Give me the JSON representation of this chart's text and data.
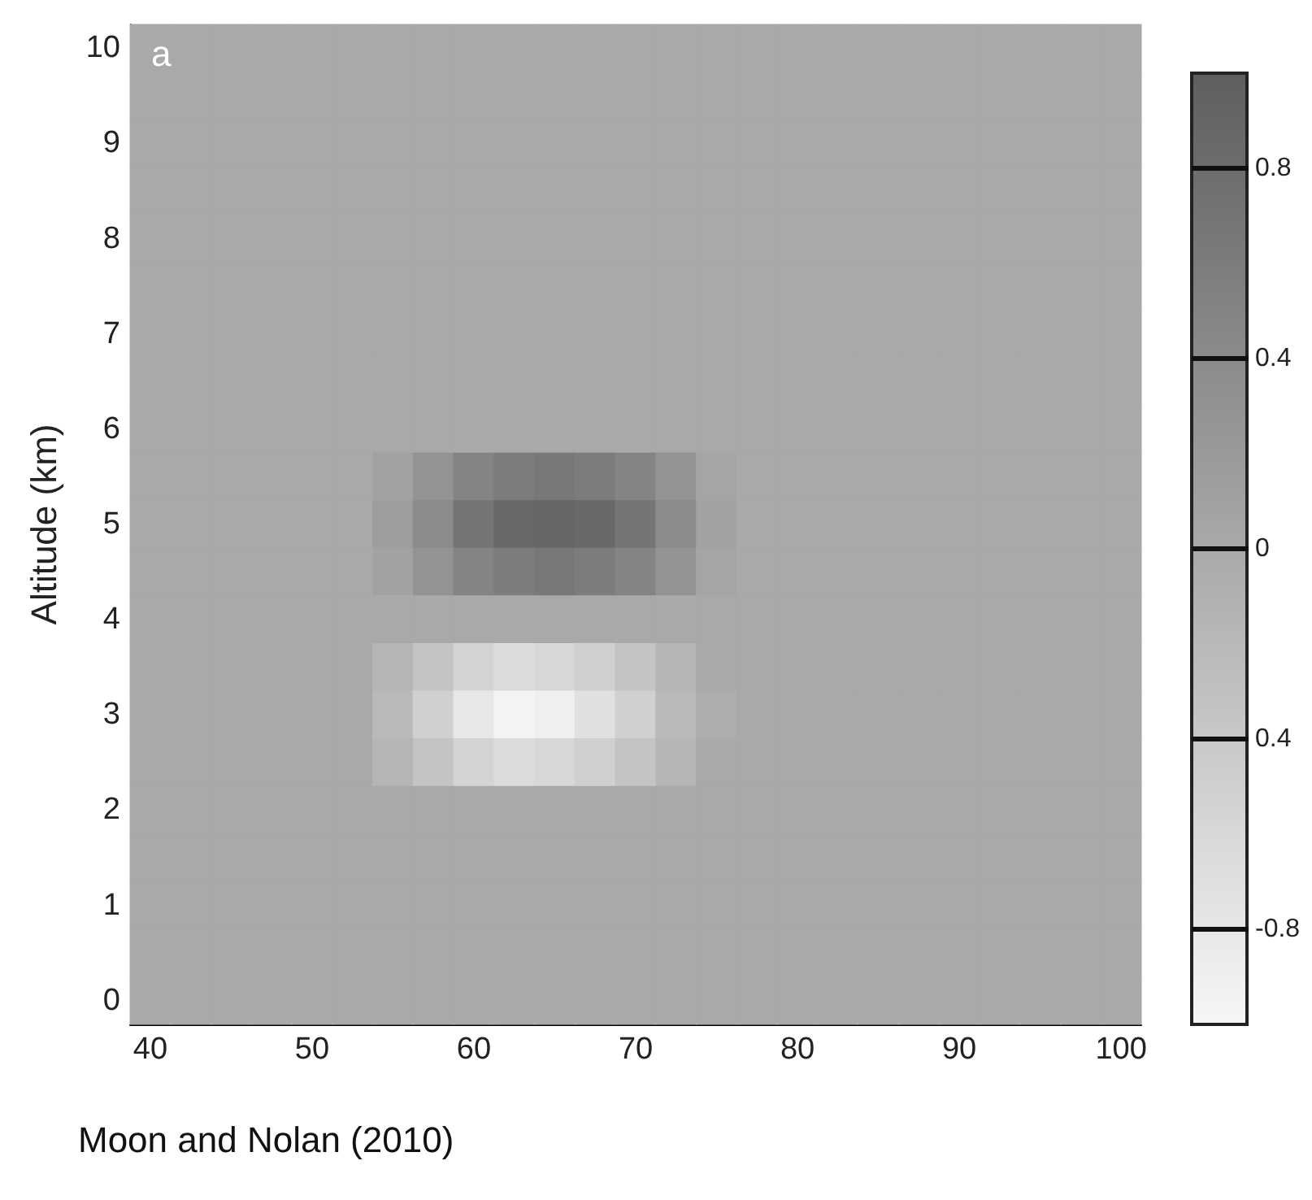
{
  "chart_data": {
    "type": "heatmap",
    "ylabel": "Altitude (km)",
    "clim": [
      -1,
      1
    ],
    "cticks": [
      0.8,
      0.4,
      0,
      {
        "value": -0.4,
        "label": "0.4"
      },
      -0.8
    ],
    "annotations": [
      "a",
      "Moon and Nolan (2010)"
    ],
    "categories": [
      "40",
      null,
      null,
      null,
      "50",
      null,
      null,
      null,
      "60",
      null,
      null,
      null,
      "70",
      null,
      null,
      null,
      "80",
      null,
      null,
      null,
      "90",
      null,
      null,
      null,
      "100"
    ],
    "y_categories": [
      "10",
      null,
      "9",
      null,
      "8",
      null,
      "7",
      null,
      "6",
      null,
      "5",
      null,
      "4",
      null,
      "3",
      null,
      "2",
      null,
      "1",
      null,
      "0"
    ],
    "cells": [
      [
        0,
        0,
        0,
        0,
        0,
        0,
        0,
        0,
        0,
        0,
        0,
        0,
        0,
        0,
        0,
        0,
        0,
        0,
        0,
        0,
        0,
        0,
        0,
        0,
        0
      ],
      [
        0,
        0,
        0,
        0,
        0,
        0,
        0,
        0,
        0,
        0,
        0,
        0,
        0,
        0,
        0,
        0,
        0,
        0,
        0,
        0,
        0,
        0,
        0,
        0,
        0
      ],
      [
        0,
        0,
        0,
        0,
        0,
        0,
        0,
        0,
        0,
        0,
        0,
        0,
        0,
        0,
        0,
        0,
        0,
        0,
        0,
        0,
        0,
        0,
        0,
        0,
        0
      ],
      [
        0,
        0,
        0,
        0,
        0,
        0,
        0,
        0,
        0,
        0,
        0,
        0,
        0,
        0,
        0,
        0,
        0,
        0,
        0,
        0,
        0,
        0,
        0,
        0,
        0
      ],
      [
        0,
        0,
        0,
        0,
        0,
        0,
        0,
        0,
        0,
        0,
        0,
        0,
        0,
        0,
        0,
        0,
        0,
        0,
        0,
        0,
        0,
        0,
        0,
        0,
        0
      ],
      [
        0,
        0,
        0,
        0,
        0,
        0,
        0,
        0,
        0,
        0,
        0,
        0,
        0,
        0,
        0,
        0,
        0,
        0,
        0,
        0,
        0,
        0,
        0,
        0,
        0
      ],
      [
        0,
        0,
        0,
        0,
        0,
        0,
        0,
        0,
        0,
        0,
        0,
        0,
        0,
        0,
        0,
        0,
        0,
        0,
        0,
        0,
        0,
        0,
        0,
        0,
        0
      ],
      [
        0,
        0,
        0,
        0,
        0,
        0,
        0,
        0,
        0,
        0,
        0,
        0,
        0,
        0,
        0,
        0,
        0,
        0,
        0,
        0,
        0,
        0,
        0,
        0,
        0
      ],
      [
        0,
        0,
        0,
        0,
        0,
        0,
        0,
        0,
        0,
        0,
        0,
        0,
        0,
        0,
        0,
        0,
        0,
        0,
        0,
        0,
        0,
        0,
        0,
        0,
        0
      ],
      [
        0,
        0,
        0,
        0,
        0,
        0,
        0.1,
        0.3,
        0.5,
        0.6,
        0.65,
        0.6,
        0.5,
        0.3,
        0.05,
        0,
        0,
        0,
        0,
        0,
        0,
        0,
        0,
        0,
        0
      ],
      [
        0,
        0,
        0,
        0,
        0,
        0,
        0.15,
        0.4,
        0.7,
        0.85,
        0.9,
        0.85,
        0.7,
        0.4,
        0.1,
        0,
        0,
        0,
        0,
        0,
        0,
        0,
        0,
        0,
        0
      ],
      [
        0,
        0,
        0,
        0,
        0,
        0,
        0.1,
        0.3,
        0.5,
        0.6,
        0.65,
        0.6,
        0.5,
        0.3,
        0.05,
        0,
        0,
        0,
        0,
        0,
        0,
        0,
        0,
        0,
        0
      ],
      [
        0,
        0,
        0,
        0,
        0,
        0,
        0,
        0,
        0,
        0,
        0,
        0,
        0,
        0,
        0,
        0,
        0,
        0,
        0,
        0,
        0,
        0,
        0,
        0,
        0
      ],
      [
        0,
        0,
        0,
        0,
        0,
        0,
        -0.15,
        -0.35,
        -0.55,
        -0.65,
        -0.6,
        -0.5,
        -0.35,
        -0.15,
        0,
        0,
        0,
        0,
        0,
        0,
        0,
        0,
        0,
        0,
        0
      ],
      [
        0,
        0,
        0,
        0,
        0,
        0,
        -0.2,
        -0.5,
        -0.8,
        -0.95,
        -0.9,
        -0.7,
        -0.5,
        -0.2,
        -0.05,
        0,
        0,
        0,
        0,
        0,
        0,
        0,
        0,
        0,
        0
      ],
      [
        0,
        0,
        0,
        0,
        0,
        0,
        -0.15,
        -0.35,
        -0.55,
        -0.65,
        -0.6,
        -0.5,
        -0.35,
        -0.15,
        0,
        0,
        0,
        0,
        0,
        0,
        0,
        0,
        0,
        0,
        0
      ],
      [
        0,
        0,
        0,
        0,
        0,
        0,
        0,
        0,
        0,
        0,
        0,
        0,
        0,
        0,
        0,
        0,
        0,
        0,
        0,
        0,
        0,
        0,
        0,
        0,
        0
      ],
      [
        0,
        0,
        0,
        0,
        0,
        0,
        0,
        0,
        0,
        0,
        0,
        0,
        0,
        0,
        0,
        0,
        0,
        0,
        0,
        0,
        0,
        0,
        0,
        0,
        0
      ],
      [
        0,
        0,
        0,
        0,
        0,
        0,
        0,
        0,
        0,
        0,
        0,
        0,
        0,
        0,
        0,
        0,
        0,
        0,
        0,
        0,
        0,
        0,
        0,
        0,
        0
      ],
      [
        0,
        0,
        0,
        0,
        0,
        0,
        0,
        0,
        0,
        0,
        0,
        0,
        0,
        0,
        0,
        0,
        0,
        0,
        0,
        0,
        0,
        0,
        0,
        0,
        0
      ],
      [
        0,
        0,
        0,
        0,
        0,
        0,
        0,
        0,
        0,
        0,
        0,
        0,
        0,
        0,
        0,
        0,
        0,
        0,
        0,
        0,
        0,
        0,
        0,
        0,
        0
      ]
    ]
  }
}
